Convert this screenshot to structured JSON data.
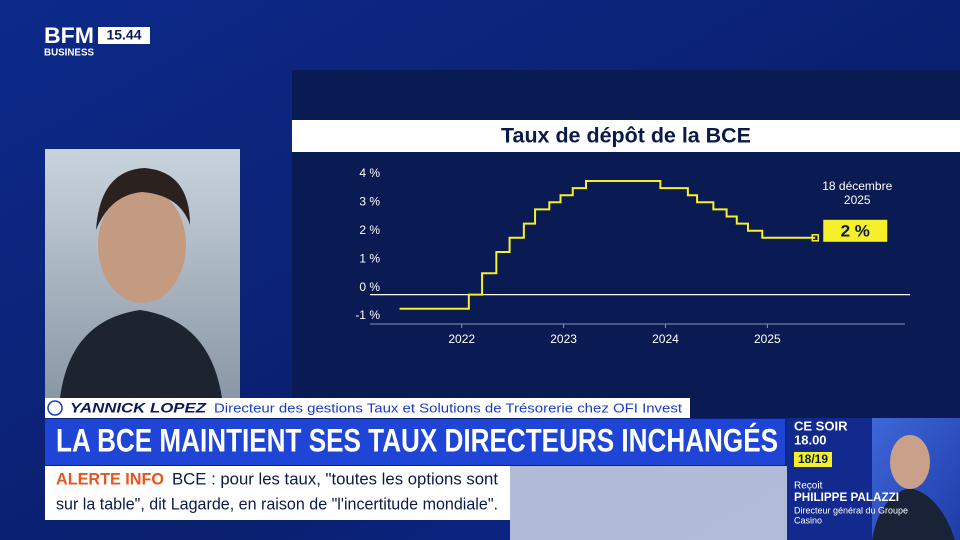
{
  "header": {
    "logo": "BFM",
    "logo_sub": "BUSINESS",
    "time": "15.44"
  },
  "chart_data": {
    "type": "line",
    "drawstyle": "steps-post",
    "title": "Taux de dépôt de la BCE",
    "color": "#f5f02a",
    "x": [
      2021.89,
      2022.57,
      2022.7,
      2022.84,
      2022.97,
      2023.11,
      2023.22,
      2023.36,
      2023.47,
      2023.59,
      2023.72,
      2024.45,
      2024.72,
      2024.81,
      2024.97,
      2025.1,
      2025.2,
      2025.31,
      2025.45,
      2025.97
    ],
    "values": [
      -0.5,
      0,
      0.75,
      1.5,
      2,
      2.5,
      3,
      3.25,
      3.5,
      3.75,
      4,
      3.75,
      3.5,
      3.25,
      3,
      2.75,
      2.5,
      2.25,
      2,
      2
    ],
    "value_labels": [
      null,
      null,
      null,
      null,
      null,
      null,
      null,
      null,
      null,
      null,
      null,
      null,
      null,
      null,
      null,
      null,
      null,
      null,
      null,
      "2 %"
    ],
    "annotation": [
      "18 décembre",
      "2025"
    ],
    "xlim": [
      2021.6,
      2026.9
    ],
    "ylim": [
      -1,
      4
    ],
    "xticks": [
      {
        "value": 2022.5,
        "label": "2022"
      },
      {
        "value": 2023.5,
        "label": "2023"
      },
      {
        "value": 2024.5,
        "label": "2024"
      },
      {
        "value": 2025.5,
        "label": "2025"
      }
    ],
    "yticks": [
      {
        "value": 4,
        "label": "4 %"
      },
      {
        "value": 3,
        "label": "3 %"
      },
      {
        "value": 2,
        "label": "2 %"
      },
      {
        "value": 1,
        "label": "1 %"
      },
      {
        "value": 0,
        "label": "0 %"
      },
      {
        "value": -1,
        "label": "-1 %"
      }
    ]
  },
  "lower_third": {
    "name": "YANNICK LOPEZ",
    "role": "Directeur des gestions Taux et Solutions de Trésorerie chez OFI Invest",
    "headline": "LA BCE MAINTIENT SES TAUX DIRECTEURS INCHANGÉS",
    "alert_label": "ALERTE INFO",
    "alert_lines": [
      "BCE : pour les taux, \"toutes les options sont",
      "sur la table\", dit Lagarde, en raison de \"l'incertitude mondiale\"."
    ]
  },
  "program": {
    "label": "CE SOIR",
    "time": "18.00",
    "show": "18/19",
    "receives": "Reçoit",
    "guest": "PHILIPPE PALAZZI",
    "guest_role_lines": [
      "Directeur général du Groupe",
      "Casino"
    ]
  }
}
